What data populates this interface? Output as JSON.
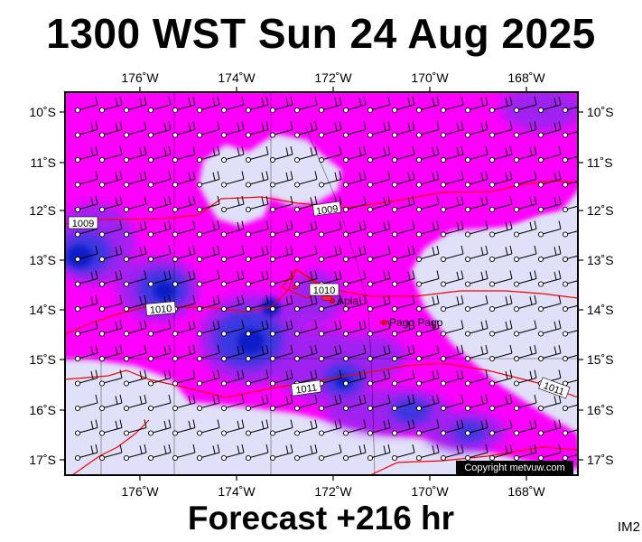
{
  "header": {
    "title": "1300 WST Sun 24 Aug 2025"
  },
  "footer": {
    "forecast": "Forecast +216 hr",
    "code": "IM2"
  },
  "map": {
    "copyright": "Copyright metvuw.com",
    "lon_ticks": [
      "176˚W",
      "174˚W",
      "172˚W",
      "170˚W",
      "168˚W"
    ],
    "lat_ticks": [
      "10˚S",
      "11˚S",
      "12˚S",
      "13˚S",
      "14˚S",
      "15˚S",
      "16˚S",
      "17˚S"
    ],
    "places": [
      {
        "name": "Apia"
      },
      {
        "name": "Pago Pago"
      }
    ],
    "isobar_labels": [
      "1009",
      "1009",
      "1010",
      "1010",
      "1011",
      "1011"
    ],
    "colors": {
      "light": "#e0e0f8",
      "magenta": "#ff00ff",
      "violet": "#a020f0",
      "blue": "#3838e0",
      "deep_blue": "#0a1ec8",
      "isobar": "#ff0000"
    }
  }
}
